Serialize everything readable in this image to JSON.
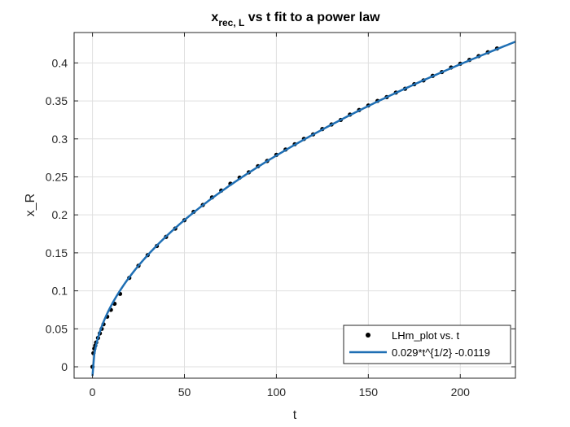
{
  "chart_data": {
    "type": "scatter",
    "title": {
      "main": "x",
      "subscript": "rec, L",
      "rest": " vs t fit to a power law"
    },
    "xlabel": "t",
    "ylabel": "x_R",
    "xlim": [
      -10,
      230
    ],
    "ylim": [
      -0.015,
      0.44
    ],
    "xticks": [
      0,
      50,
      100,
      150,
      200
    ],
    "yticks": [
      0,
      0.05,
      0.1,
      0.15,
      0.2,
      0.25,
      0.3,
      0.35,
      0.4
    ],
    "xtick_labels": [
      "0",
      "50",
      "100",
      "150",
      "200"
    ],
    "ytick_labels": [
      "0",
      "0.05",
      "0.1",
      "0.15",
      "0.2",
      "0.25",
      "0.3",
      "0.35",
      "0.4"
    ],
    "grid": true,
    "legend_position": "bottom-right",
    "series": [
      {
        "name": "LHm_plot vs. t",
        "kind": "markers",
        "color": "#000000",
        "x": [
          0,
          0.5,
          1,
          1.5,
          2,
          3,
          4,
          5,
          6,
          8,
          10,
          12,
          15,
          20,
          25,
          30,
          35,
          40,
          45,
          50,
          55,
          60,
          65,
          70,
          75,
          80,
          85,
          90,
          95,
          100,
          105,
          110,
          115,
          120,
          125,
          130,
          135,
          140,
          145,
          150,
          155,
          160,
          165,
          170,
          175,
          180,
          185,
          190,
          195,
          200,
          205,
          210,
          215,
          220
        ],
        "y": [
          0.0,
          0.018,
          0.024,
          0.028,
          0.032,
          0.038,
          0.044,
          0.05,
          0.056,
          0.066,
          0.075,
          0.083,
          0.096,
          0.117,
          0.133,
          0.147,
          0.159,
          0.171,
          0.182,
          0.193,
          0.204,
          0.213,
          0.223,
          0.232,
          0.241,
          0.249,
          0.256,
          0.264,
          0.271,
          0.279,
          0.286,
          0.293,
          0.3,
          0.306,
          0.313,
          0.319,
          0.325,
          0.332,
          0.338,
          0.344,
          0.35,
          0.355,
          0.361,
          0.366,
          0.372,
          0.377,
          0.383,
          0.388,
          0.394,
          0.399,
          0.404,
          0.409,
          0.414,
          0.419
        ]
      },
      {
        "name": "0.029*t^{1/2} -0.0119",
        "kind": "line",
        "color": "#1f6fb4",
        "coefficient": 0.029,
        "exponent": 0.5,
        "offset": -0.0119,
        "x_range": [
          0,
          230
        ]
      }
    ]
  }
}
